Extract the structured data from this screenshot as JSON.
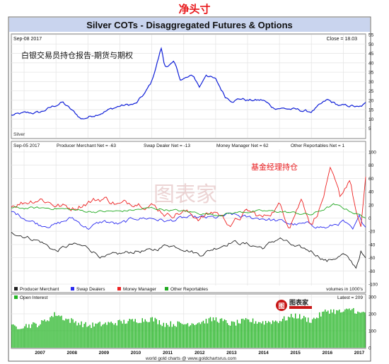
{
  "page_heading": "净头寸",
  "chart_title": "Silver COTs - Disaggregated Futures & Options",
  "footer_text": "world gold charts @ www.goldchartsrus.com",
  "watermark": "图表家",
  "logo_text": "图表家",
  "colors": {
    "title_band": "#c9d4ee",
    "grid": "#e6e6e6",
    "frame": "#666666",
    "silver": "#1020d8",
    "producer_merchant": "#222222",
    "swap_dealers": "#2a2af0",
    "money_manager": "#ee2222",
    "other_reportables": "#22aa22",
    "open_interest": "#22b422",
    "annotation_red": "#e8181b"
  },
  "chart_data": [
    {
      "panel": "silver_price",
      "type": "line",
      "date_label": "Sep-08 2017",
      "close_label": "Close = 18.03",
      "annotation": "白银交易员持仓报告-期货与期权",
      "series_label": "Silver",
      "x_start": 2006.6,
      "x_end": 2017.7,
      "ylim": [
        0,
        55
      ],
      "yticks": [
        5,
        10,
        15,
        20,
        25,
        30,
        35,
        40,
        45,
        50,
        55
      ],
      "anchors": [
        [
          2006.6,
          12
        ],
        [
          2007.0,
          13
        ],
        [
          2007.5,
          13.5
        ],
        [
          2008.2,
          19
        ],
        [
          2008.6,
          13
        ],
        [
          2008.8,
          10
        ],
        [
          2009.0,
          11
        ],
        [
          2009.5,
          14
        ],
        [
          2010.0,
          17
        ],
        [
          2010.5,
          18
        ],
        [
          2010.8,
          24
        ],
        [
          2011.0,
          30
        ],
        [
          2011.3,
          48
        ],
        [
          2011.4,
          38
        ],
        [
          2011.7,
          40
        ],
        [
          2011.9,
          31
        ],
        [
          2012.3,
          33
        ],
        [
          2012.5,
          27
        ],
        [
          2012.7,
          34
        ],
        [
          2013.0,
          31
        ],
        [
          2013.3,
          22
        ],
        [
          2013.5,
          20
        ],
        [
          2013.8,
          21
        ],
        [
          2014.0,
          20
        ],
        [
          2014.5,
          20
        ],
        [
          2014.8,
          16
        ],
        [
          2015.0,
          16
        ],
        [
          2015.5,
          15
        ],
        [
          2015.9,
          14
        ],
        [
          2016.0,
          14
        ],
        [
          2016.5,
          20
        ],
        [
          2016.9,
          17
        ],
        [
          2017.3,
          17
        ],
        [
          2017.5,
          16
        ],
        [
          2017.7,
          18
        ]
      ],
      "noise": 1.2
    },
    {
      "panel": "net_positions",
      "type": "line",
      "date_label": "Sep-05 2017",
      "annotation": "基金经理持仓",
      "header_labels": [
        "Producer Merchant Net = -63",
        "Swap Dealer Net = -13",
        "Money Manager Net = 62",
        "Other Reportables Net = 1"
      ],
      "legend": [
        "Producer Merchant",
        "Swap Dealers",
        "Money Manager",
        "Other Reportables"
      ],
      "units_note": "volumes in 1000's",
      "x_start": 2006.6,
      "x_end": 2017.7,
      "ylim": [
        -100,
        100
      ],
      "yticks": [
        -100,
        -80,
        -60,
        -40,
        -20,
        0,
        20,
        40,
        60,
        80,
        100
      ],
      "series": [
        {
          "name": "Producer Merchant",
          "color_key": "producer_merchant",
          "noise": 5,
          "anchors": [
            [
              2006.6,
              -20
            ],
            [
              2007.5,
              -35
            ],
            [
              2008.0,
              -50
            ],
            [
              2008.5,
              -40
            ],
            [
              2009.0,
              -45
            ],
            [
              2009.5,
              -60
            ],
            [
              2010.0,
              -55
            ],
            [
              2010.5,
              -50
            ],
            [
              2011.0,
              -50
            ],
            [
              2011.5,
              -40
            ],
            [
              2012.0,
              -45
            ],
            [
              2012.5,
              -55
            ],
            [
              2013.0,
              -45
            ],
            [
              2013.5,
              -35
            ],
            [
              2014.0,
              -40
            ],
            [
              2014.5,
              -45
            ],
            [
              2015.0,
              -30
            ],
            [
              2015.5,
              -45
            ],
            [
              2016.0,
              -50
            ],
            [
              2016.5,
              -65
            ],
            [
              2017.0,
              -55
            ],
            [
              2017.4,
              -75
            ],
            [
              2017.55,
              -50
            ],
            [
              2017.7,
              -63
            ]
          ]
        },
        {
          "name": "Swap Dealers",
          "color_key": "swap_dealers",
          "noise": 5,
          "anchors": [
            [
              2006.6,
              10
            ],
            [
              2007.5,
              -10
            ],
            [
              2008.0,
              -10
            ],
            [
              2008.5,
              0
            ],
            [
              2009.0,
              -15
            ],
            [
              2009.5,
              -5
            ],
            [
              2010.0,
              -10
            ],
            [
              2010.5,
              0
            ],
            [
              2011.0,
              0
            ],
            [
              2011.5,
              -5
            ],
            [
              2012.0,
              0
            ],
            [
              2012.5,
              0
            ],
            [
              2013.0,
              0
            ],
            [
              2013.5,
              5
            ],
            [
              2014.0,
              0
            ],
            [
              2014.5,
              0
            ],
            [
              2015.0,
              -5
            ],
            [
              2015.5,
              -10
            ],
            [
              2016.0,
              -10
            ],
            [
              2016.5,
              -15
            ],
            [
              2017.0,
              -5
            ],
            [
              2017.3,
              -20
            ],
            [
              2017.5,
              0
            ],
            [
              2017.7,
              -13
            ]
          ]
        },
        {
          "name": "Money Manager",
          "color_key": "money_manager",
          "noise": 8,
          "anchors": [
            [
              2006.6,
              20
            ],
            [
              2007.5,
              30
            ],
            [
              2008.0,
              20
            ],
            [
              2008.5,
              15
            ],
            [
              2009.0,
              25
            ],
            [
              2009.5,
              30
            ],
            [
              2010.0,
              20
            ],
            [
              2010.5,
              25
            ],
            [
              2011.0,
              20
            ],
            [
              2011.5,
              5
            ],
            [
              2012.0,
              10
            ],
            [
              2012.5,
              0
            ],
            [
              2013.0,
              10
            ],
            [
              2013.5,
              -10
            ],
            [
              2014.0,
              10
            ],
            [
              2014.5,
              0
            ],
            [
              2015.0,
              20
            ],
            [
              2015.3,
              -10
            ],
            [
              2015.7,
              30
            ],
            [
              2016.0,
              -10
            ],
            [
              2016.3,
              20
            ],
            [
              2016.6,
              70
            ],
            [
              2016.9,
              30
            ],
            [
              2017.0,
              40
            ],
            [
              2017.2,
              60
            ],
            [
              2017.4,
              10
            ],
            [
              2017.55,
              -20
            ],
            [
              2017.7,
              62
            ]
          ]
        },
        {
          "name": "Other Reportables",
          "color_key": "other_reportables",
          "noise": 3,
          "anchors": [
            [
              2006.6,
              15
            ],
            [
              2008.0,
              15
            ],
            [
              2009.0,
              10
            ],
            [
              2010.0,
              10
            ],
            [
              2011.0,
              15
            ],
            [
              2012.0,
              10
            ],
            [
              2013.0,
              5
            ],
            [
              2014.0,
              10
            ],
            [
              2015.0,
              10
            ],
            [
              2016.0,
              5
            ],
            [
              2016.7,
              20
            ],
            [
              2017.0,
              15
            ],
            [
              2017.7,
              1
            ]
          ]
        }
      ]
    },
    {
      "panel": "open_interest",
      "type": "bar",
      "legend_label": "Open Interest",
      "latest_label": "Latest = 209",
      "x_start": 2006.6,
      "x_end": 2017.7,
      "ylim": [
        0,
        300
      ],
      "yticks": [
        0,
        100,
        200,
        300
      ],
      "anchors": [
        [
          2006.6,
          120
        ],
        [
          2007.5,
          140
        ],
        [
          2008.0,
          200
        ],
        [
          2008.3,
          170
        ],
        [
          2009.0,
          130
        ],
        [
          2009.5,
          140
        ],
        [
          2010.0,
          150
        ],
        [
          2010.5,
          160
        ],
        [
          2011.0,
          170
        ],
        [
          2011.4,
          140
        ],
        [
          2012.0,
          140
        ],
        [
          2012.5,
          150
        ],
        [
          2013.0,
          170
        ],
        [
          2013.5,
          140
        ],
        [
          2014.0,
          160
        ],
        [
          2014.5,
          150
        ],
        [
          2015.0,
          160
        ],
        [
          2015.5,
          190
        ],
        [
          2016.0,
          160
        ],
        [
          2016.5,
          220
        ],
        [
          2017.0,
          210
        ],
        [
          2017.3,
          230
        ],
        [
          2017.5,
          200
        ],
        [
          2017.7,
          209
        ]
      ],
      "noise": 18
    }
  ],
  "x_axis": {
    "labels": [
      "2007",
      "2008",
      "2009",
      "2010",
      "2011",
      "2012",
      "2013",
      "2014",
      "2015",
      "2016",
      "2017"
    ]
  }
}
